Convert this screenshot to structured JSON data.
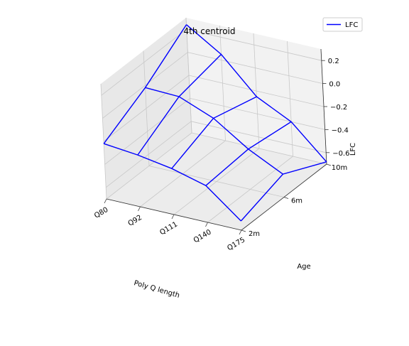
{
  "chart_data": {
    "type": "line",
    "projection": "3d",
    "title": "4th centroid",
    "xlabel": "Poly Q length",
    "ylabel": "Age",
    "zlabel": "LFC",
    "x_categories": [
      "Q80",
      "Q92",
      "Q111",
      "Q140",
      "Q175"
    ],
    "y_categories": [
      "2m",
      "6m",
      "10m"
    ],
    "z_ticks": [
      "0.2",
      "0.0",
      "−0.2",
      "−0.4",
      "−0.6"
    ],
    "z_tick_values": [
      0.2,
      0.0,
      -0.2,
      -0.4,
      -0.6
    ],
    "zlim": [
      -0.7,
      0.3
    ],
    "grid": true,
    "legend_position": "top-right",
    "series": [
      {
        "name": "LFC",
        "color": "#0000ff",
        "values_by_age": {
          "2m": [
            -0.22,
            -0.25,
            -0.3,
            -0.38,
            -0.62
          ],
          "6m": [
            -0.02,
            -0.03,
            -0.15,
            -0.35,
            -0.5
          ],
          "10m": [
            0.24,
            0.05,
            -0.25,
            -0.4,
            -0.68
          ]
        }
      }
    ]
  }
}
